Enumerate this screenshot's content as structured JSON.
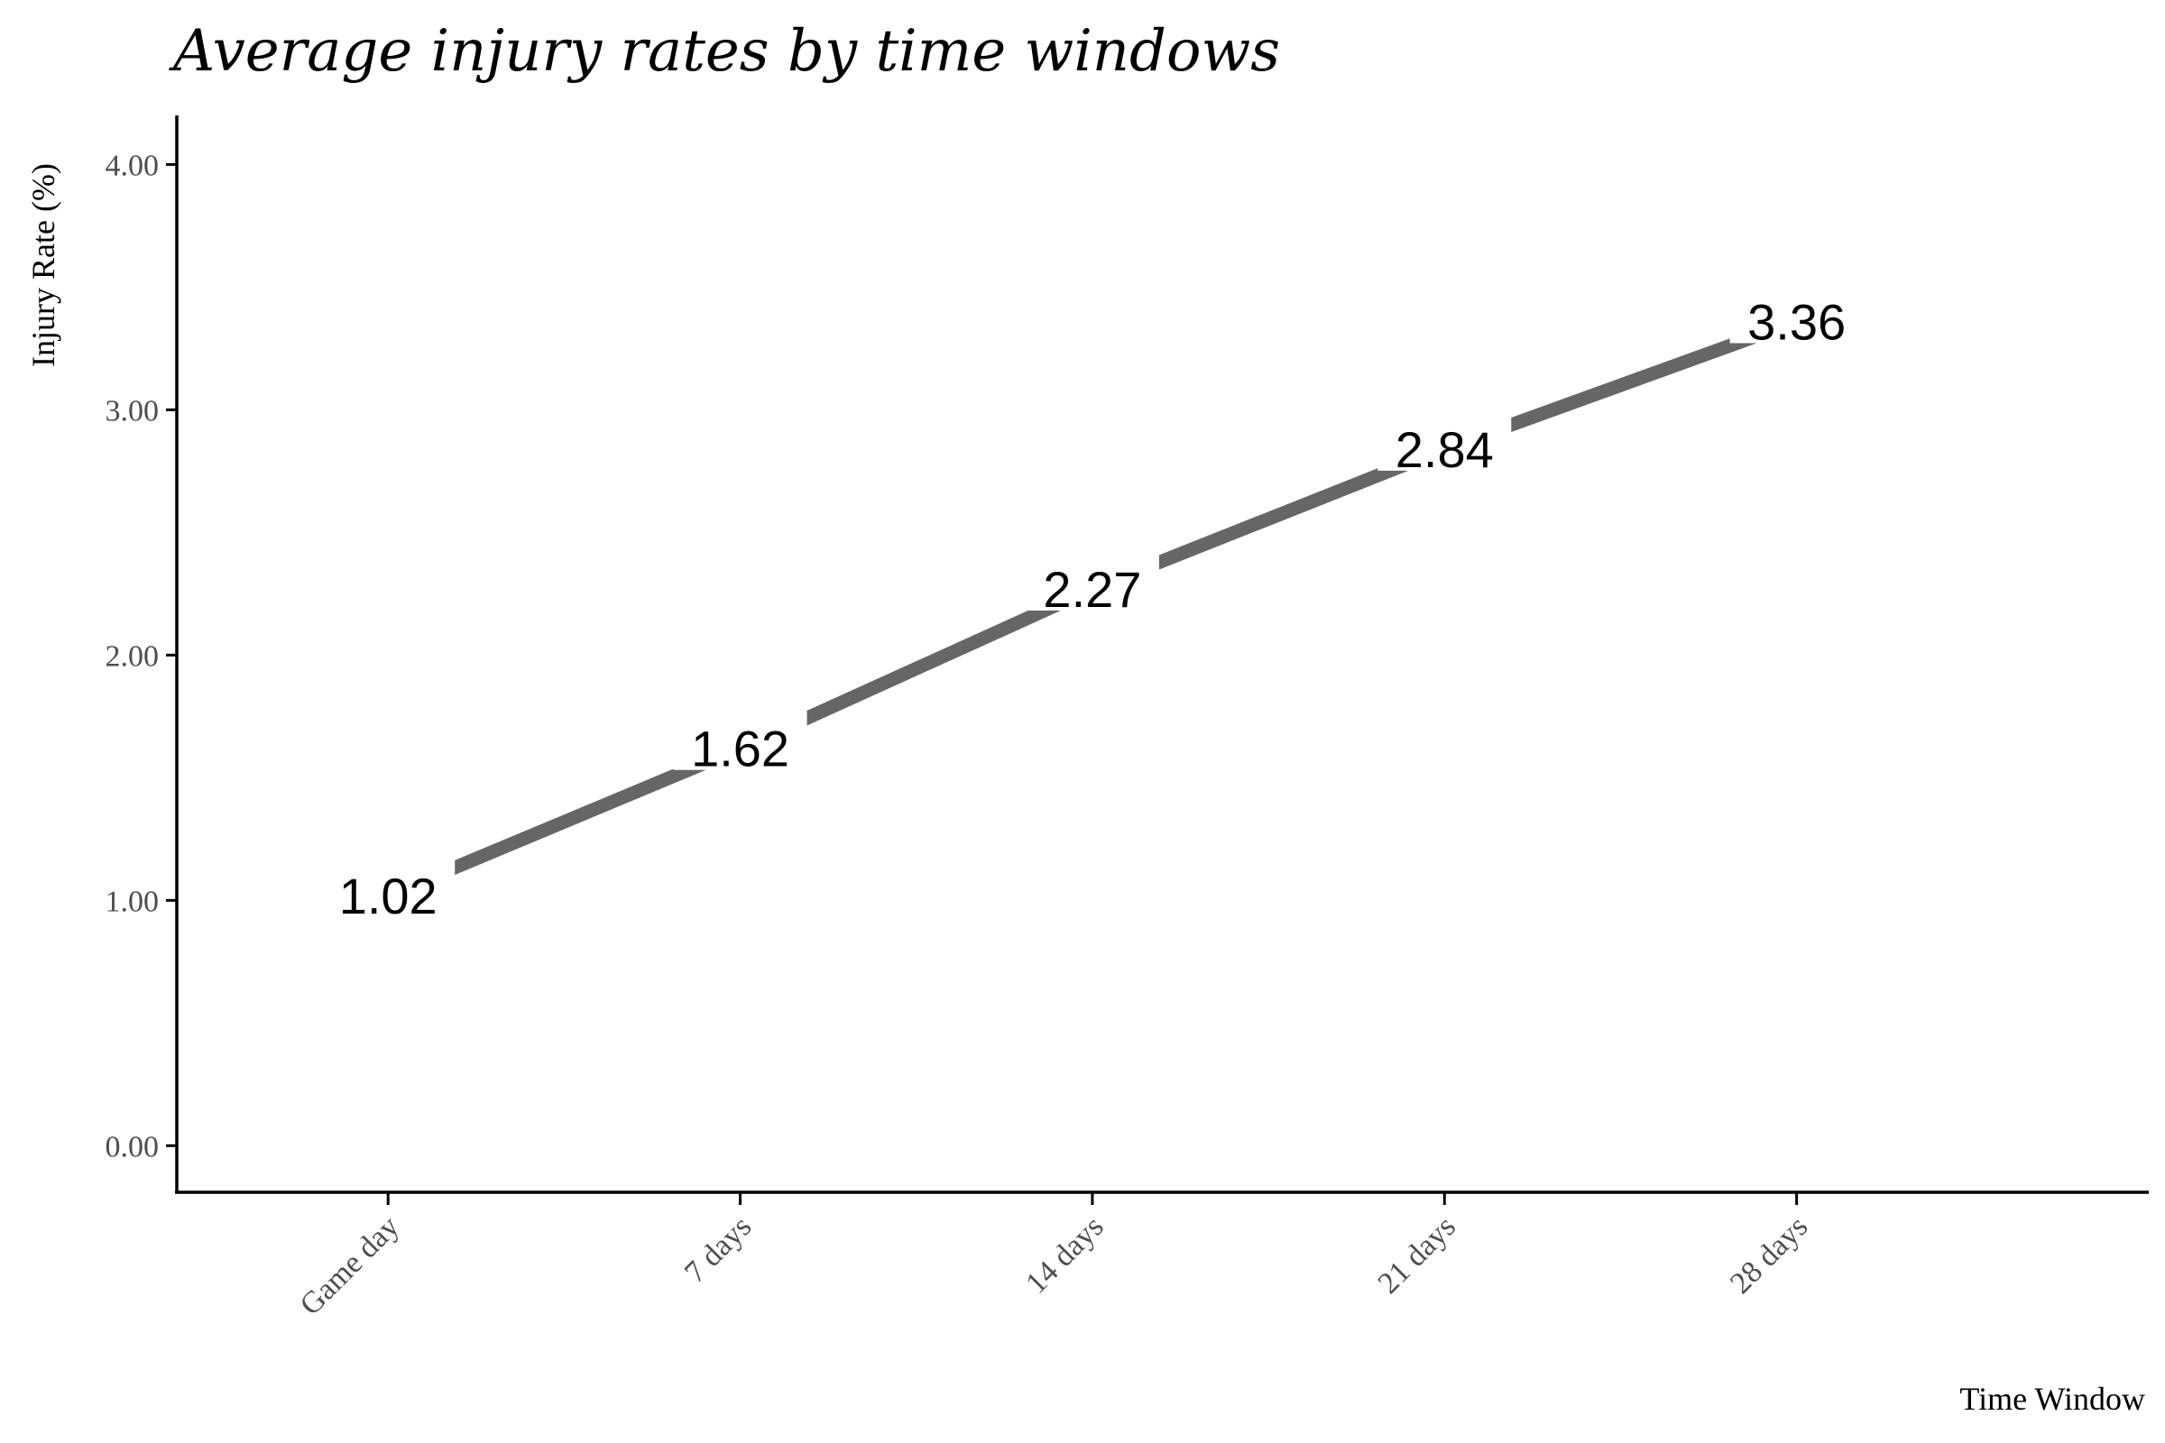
{
  "chart_data": {
    "type": "line",
    "title": "Average injury rates by time windows",
    "xlabel": "Time Window",
    "ylabel": "Injury Rate (%)",
    "categories": [
      "Game day",
      "7 days",
      "14 days",
      "21 days",
      "28 days"
    ],
    "values": [
      1.02,
      1.62,
      2.27,
      2.84,
      3.36
    ],
    "data_labels": [
      "1.02",
      "1.62",
      "2.27",
      "2.84",
      "3.36"
    ],
    "yticks": [
      0,
      1,
      2,
      3,
      4
    ],
    "ytick_labels": [
      "0.00",
      "1.00",
      "2.00",
      "3.00",
      "4.00"
    ],
    "ylim": [
      -0.19,
      4.2
    ],
    "grid": false,
    "legend": "none",
    "colors": {
      "line": "#666666",
      "axis": "#000000",
      "tick_text": "#4d4d4d",
      "text": "#000000"
    }
  }
}
